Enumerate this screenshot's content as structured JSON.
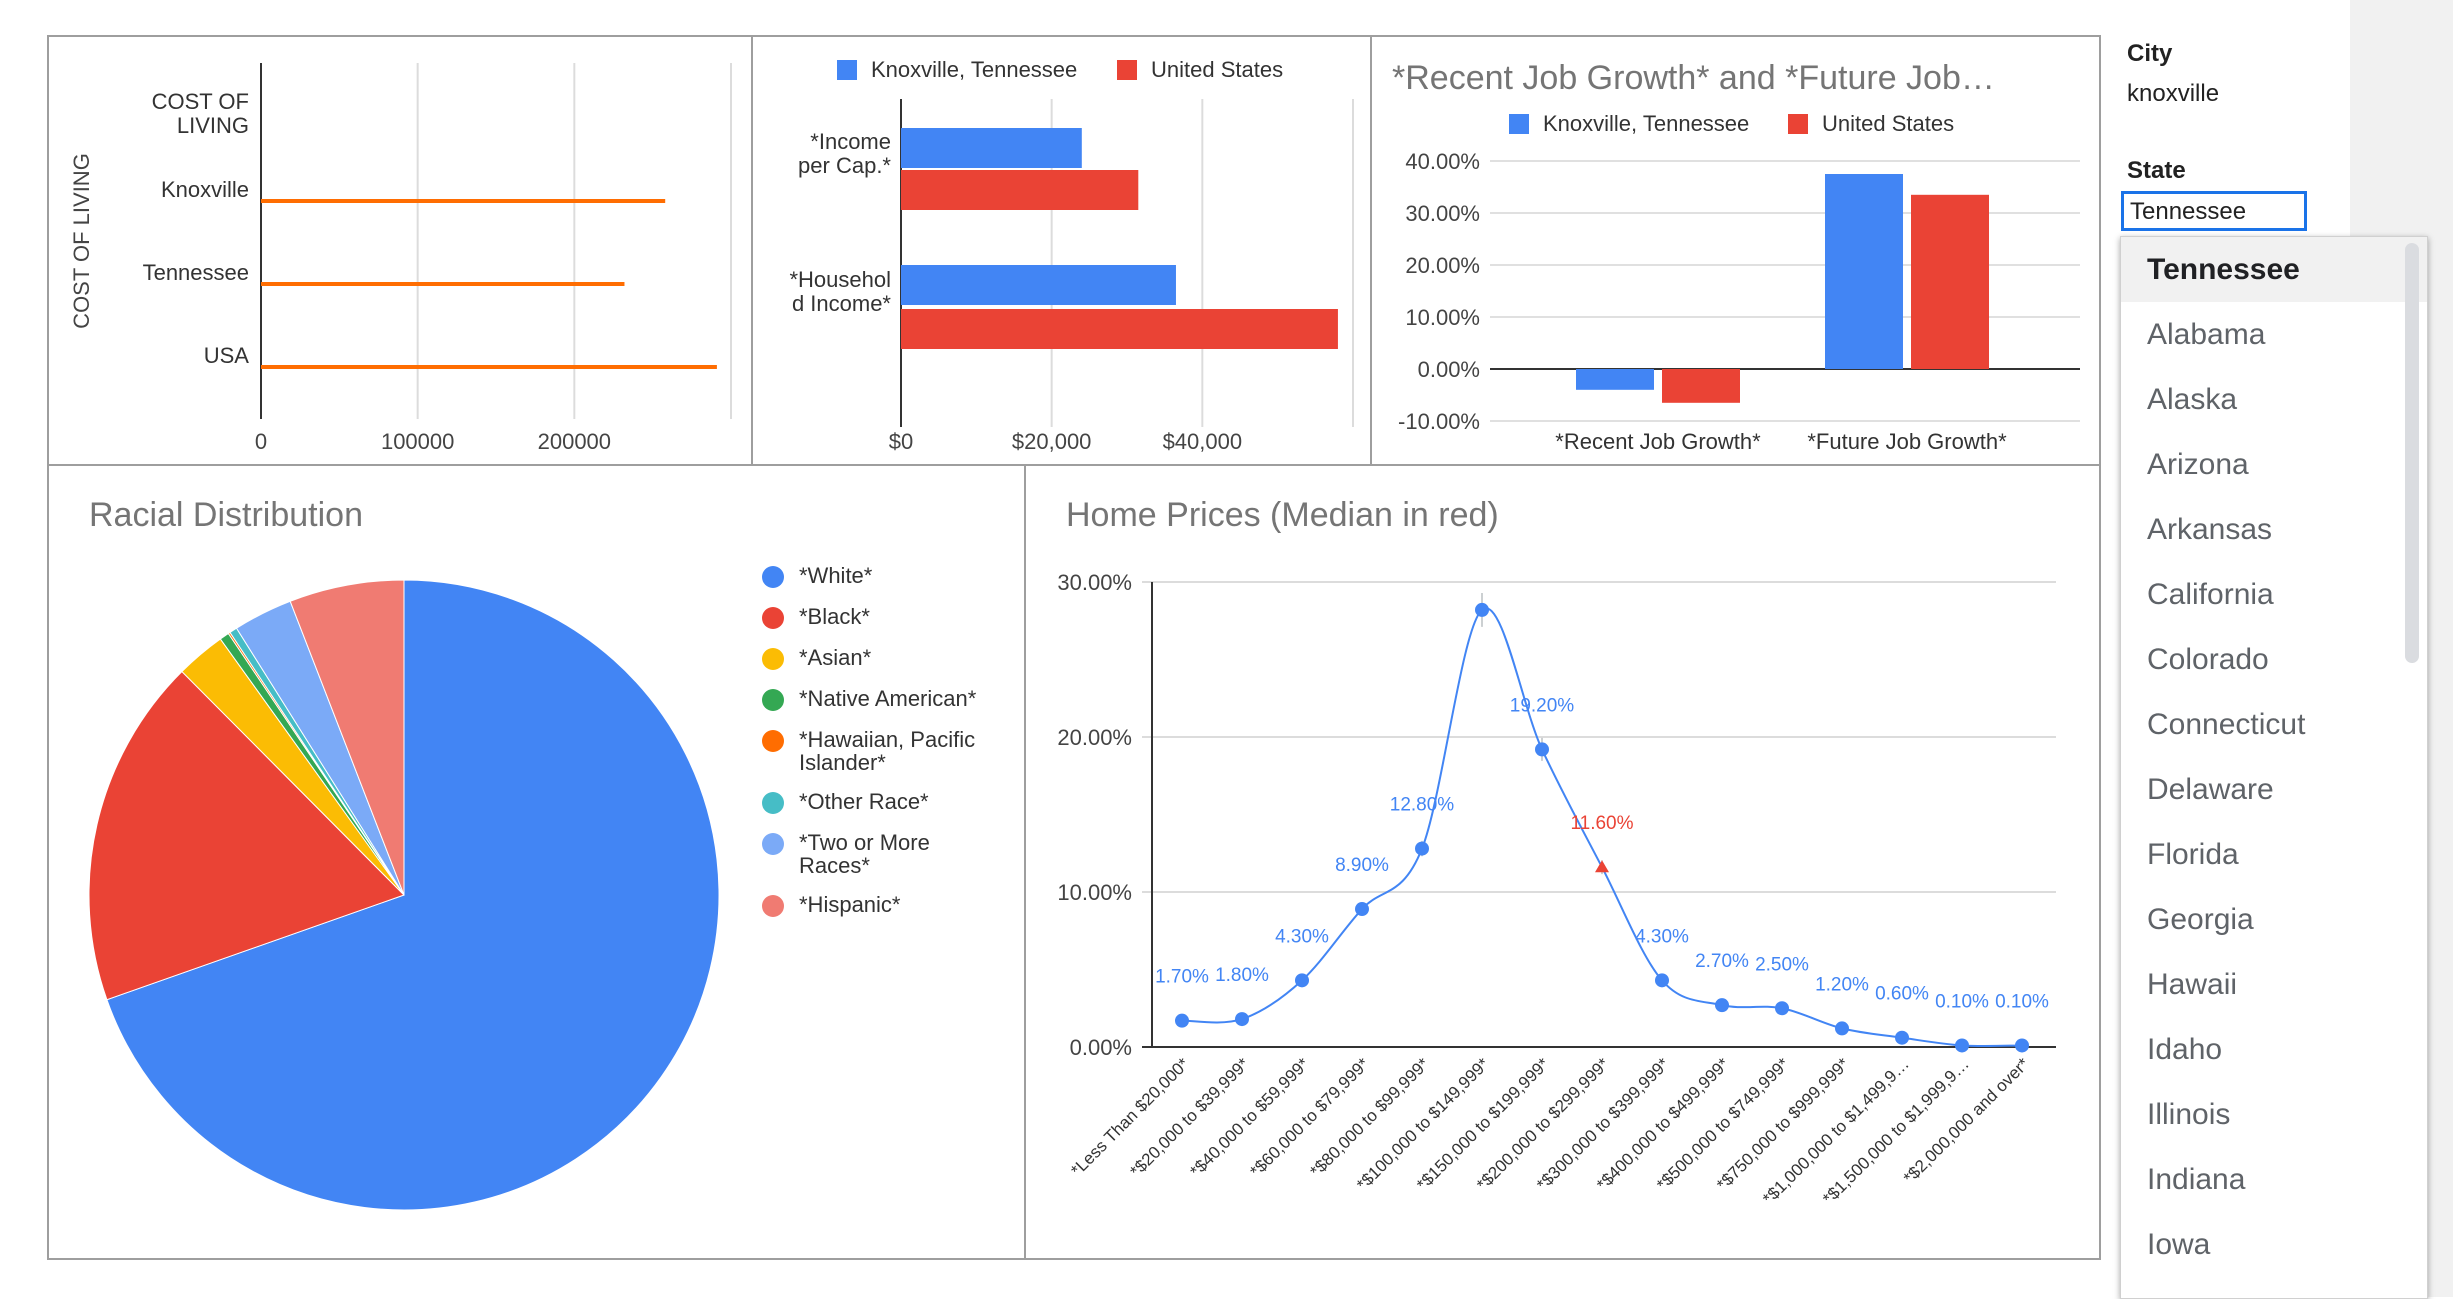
{
  "sidebar": {
    "city_label": "City",
    "city_value": "knoxville",
    "state_label": "State",
    "state_value": "Tennessee",
    "state_options": [
      "Tennessee",
      "Alabama",
      "Alaska",
      "Arizona",
      "Arkansas",
      "California",
      "Colorado",
      "Connecticut",
      "Delaware",
      "Florida",
      "Georgia",
      "Hawaii",
      "Idaho",
      "Illinois",
      "Indiana",
      "Iowa"
    ],
    "selected_state": "Tennessee"
  },
  "colors": {
    "blue": "#4285f4",
    "red": "#ea4335",
    "orange": "#ff6d01",
    "yellow": "#fbbc04",
    "green": "#34a853",
    "teal": "#46bdc6",
    "lightblue": "#7baaf7",
    "salmon": "#f07b72",
    "grid": "#e0e0e0"
  },
  "chart_data": [
    {
      "id": "cost-of-living",
      "type": "bar",
      "orientation": "horizontal",
      "title": "",
      "ylabel": "COST OF LIVING",
      "categories": [
        "COST OF LIVING",
        "Knoxville",
        "Tennessee",
        "USA"
      ],
      "values": [
        null,
        258000,
        232000,
        291000
      ],
      "xticks": [
        "0",
        "100000",
        "200000"
      ],
      "xlim": [
        0,
        300000
      ],
      "grid": true
    },
    {
      "id": "income",
      "type": "bar",
      "orientation": "horizontal",
      "categories": [
        "*Income per Cap.*",
        "*Household Income*"
      ],
      "series": [
        {
          "name": "Knoxville, Tennessee",
          "values": [
            24000,
            36500
          ]
        },
        {
          "name": "United States",
          "values": [
            31500,
            58000
          ]
        }
      ],
      "xticks": [
        "$0",
        "$20,000",
        "$40,000"
      ],
      "xlim": [
        0,
        60000
      ],
      "legend": "top"
    },
    {
      "id": "job-growth",
      "type": "bar",
      "title": "*Recent Job Growth* and *Future Job…",
      "categories": [
        "*Recent Job Growth*",
        "*Future Job Growth*"
      ],
      "series": [
        {
          "name": "Knoxville, Tennessee",
          "values": [
            -4.0,
            37.5
          ]
        },
        {
          "name": "United States",
          "values": [
            -6.5,
            33.5
          ]
        }
      ],
      "yticks": [
        "40.00%",
        "30.00%",
        "20.00%",
        "10.00%",
        "0.00%",
        "-10.00%"
      ],
      "ylim": [
        -10,
        40
      ],
      "legend": "top"
    },
    {
      "id": "racial",
      "type": "pie",
      "title": "Racial Distribution",
      "labels": [
        "*White*",
        "*Black*",
        "*Asian*",
        "*Native American*",
        "*Hawaiian, Pacific Islander*",
        "*Other Race*",
        "*Two or More Races*",
        "*Hispanic*"
      ],
      "values": [
        71.0,
        18.3,
        2.6,
        0.5,
        0.1,
        0.4,
        3.1,
        6.0
      ],
      "legend": "right"
    },
    {
      "id": "home-prices",
      "type": "line",
      "title": "Home Prices (Median in red)",
      "categories": [
        "*Less Than $20,000*",
        "*$20,000 to $39,999*",
        "*$40,000 to $59,999*",
        "*$60,000 to $79,999*",
        "*$80,000 to $99,999*",
        "*$100,000 to $149,999*",
        "*$150,000 to $199,999*",
        "*$200,000 to $299,999*",
        "*$300,000 to $399,999*",
        "*$400,000 to $499,999*",
        "*$500,000 to $749,999*",
        "*$750,000 to $999,999*",
        "*$1,000,000 to $1,499,9…",
        "*$1,500,000 to $1,999,9…",
        "*$2,000,000 and over*"
      ],
      "values": [
        1.7,
        1.8,
        4.3,
        8.9,
        12.8,
        28.2,
        19.2,
        11.6,
        4.3,
        2.7,
        2.5,
        1.2,
        0.6,
        0.1,
        0.1
      ],
      "data_labels": [
        "1.70%",
        "1.80%",
        "4.30%",
        "8.90%",
        "12.80%",
        "",
        "19.20%",
        "11.60%",
        "4.30%",
        "2.70%",
        "2.50%",
        "1.20%",
        "0.60%",
        "0.10%",
        "0.10%"
      ],
      "median_index": 7,
      "yticks": [
        "30.00%",
        "20.00%",
        "10.00%",
        "0.00%"
      ],
      "ylim": [
        0,
        30
      ],
      "grid": true
    }
  ]
}
